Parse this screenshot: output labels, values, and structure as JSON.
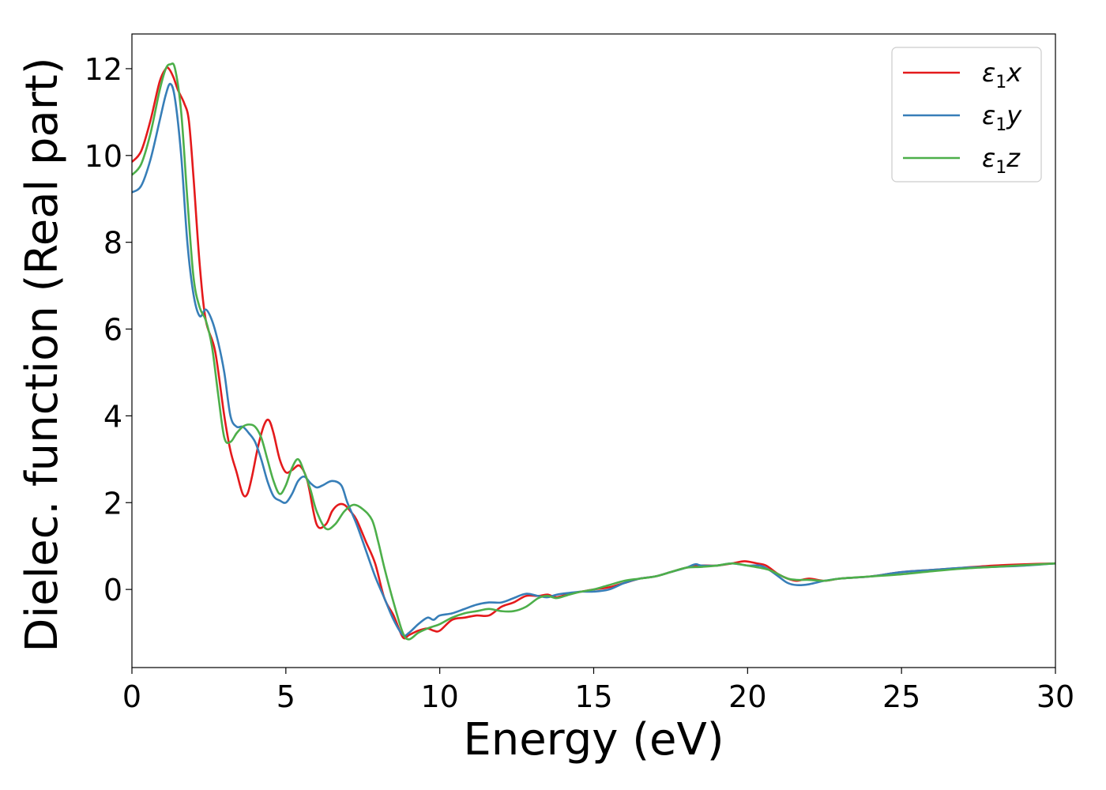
{
  "chart_data": {
    "type": "line",
    "xlabel": "Energy (eV)",
    "ylabel": "Dielec. function (Real part)",
    "xlim": [
      0,
      30
    ],
    "ylim": [
      -1.8,
      12.8
    ],
    "xticks": [
      0,
      5,
      10,
      15,
      20,
      25,
      30
    ],
    "yticks": [
      0,
      2,
      4,
      6,
      8,
      10,
      12
    ],
    "grid": false,
    "legend_position": "top-right",
    "series": [
      {
        "name": "ε₁x",
        "legend_base": "ε",
        "legend_sub": "1",
        "legend_var": "x",
        "color": "#e41a1c",
        "x": [
          0,
          0.3,
          0.6,
          0.9,
          1.1,
          1.2,
          1.35,
          1.5,
          1.7,
          1.85,
          2.0,
          2.2,
          2.4,
          2.7,
          3.0,
          3.2,
          3.4,
          3.6,
          3.75,
          3.9,
          4.1,
          4.3,
          4.45,
          4.6,
          4.8,
          5.0,
          5.2,
          5.45,
          5.7,
          6.0,
          6.3,
          6.5,
          6.7,
          6.9,
          7.1,
          7.3,
          7.6,
          7.9,
          8.2,
          8.5,
          8.8,
          9.0,
          9.3,
          9.6,
          9.8,
          10.0,
          10.4,
          10.8,
          11.2,
          11.6,
          12.0,
          12.4,
          12.8,
          13.2,
          13.5,
          13.8,
          14.2,
          14.6,
          15.0,
          15.5,
          16.0,
          16.5,
          17.0,
          17.5,
          18.0,
          18.5,
          19.0,
          19.5,
          19.9,
          20.3,
          20.6,
          21.0,
          21.3,
          21.6,
          22.0,
          22.5,
          23.0,
          24.0,
          25.0,
          26.0,
          27.0,
          28.0,
          29.0,
          30.0
        ],
        "y": [
          9.85,
          10.1,
          10.8,
          11.7,
          12.0,
          12.0,
          11.8,
          11.5,
          11.2,
          10.8,
          9.5,
          7.5,
          6.2,
          5.5,
          4.0,
          3.2,
          2.7,
          2.2,
          2.2,
          2.6,
          3.3,
          3.8,
          3.9,
          3.6,
          3.0,
          2.7,
          2.75,
          2.85,
          2.5,
          1.5,
          1.5,
          1.8,
          1.95,
          1.95,
          1.8,
          1.6,
          1.1,
          0.6,
          -0.2,
          -0.6,
          -1.1,
          -1.05,
          -0.95,
          -0.9,
          -0.95,
          -0.95,
          -0.7,
          -0.65,
          -0.6,
          -0.6,
          -0.4,
          -0.3,
          -0.15,
          -0.15,
          -0.12,
          -0.18,
          -0.1,
          -0.05,
          0.0,
          0.05,
          0.15,
          0.25,
          0.3,
          0.4,
          0.5,
          0.55,
          0.55,
          0.6,
          0.65,
          0.6,
          0.55,
          0.35,
          0.25,
          0.2,
          0.25,
          0.2,
          0.25,
          0.3,
          0.4,
          0.45,
          0.5,
          0.55,
          0.58,
          0.6
        ]
      },
      {
        "name": "ε₁y",
        "legend_base": "ε",
        "legend_sub": "1",
        "legend_var": "y",
        "color": "#377eb8",
        "x": [
          0,
          0.3,
          0.6,
          0.9,
          1.1,
          1.25,
          1.4,
          1.6,
          1.8,
          2.0,
          2.2,
          2.4,
          2.6,
          2.8,
          3.0,
          3.2,
          3.4,
          3.6,
          3.8,
          4.0,
          4.2,
          4.4,
          4.6,
          4.8,
          5.0,
          5.2,
          5.4,
          5.6,
          5.8,
          6.0,
          6.2,
          6.5,
          6.8,
          7.0,
          7.3,
          7.6,
          7.9,
          8.2,
          8.5,
          8.8,
          9.0,
          9.3,
          9.6,
          9.8,
          10.0,
          10.4,
          10.8,
          11.2,
          11.6,
          12.0,
          12.4,
          12.8,
          13.2,
          13.5,
          13.8,
          14.2,
          14.6,
          15.0,
          15.5,
          16.0,
          16.5,
          17.0,
          17.5,
          18.0,
          18.3,
          18.5,
          19.0,
          19.5,
          20.0,
          20.4,
          20.7,
          21.0,
          21.3,
          21.6,
          22.0,
          22.5,
          23.0,
          24.0,
          25.0,
          26.0,
          27.0,
          28.0,
          29.0,
          30.0
        ],
        "y": [
          9.15,
          9.3,
          9.9,
          10.8,
          11.4,
          11.65,
          11.3,
          10.0,
          8.0,
          6.8,
          6.3,
          6.45,
          6.2,
          5.7,
          5.0,
          4.0,
          3.75,
          3.75,
          3.6,
          3.4,
          3.0,
          2.5,
          2.15,
          2.05,
          2.0,
          2.2,
          2.5,
          2.6,
          2.45,
          2.35,
          2.4,
          2.5,
          2.4,
          2.0,
          1.5,
          0.9,
          0.3,
          -0.2,
          -0.7,
          -1.05,
          -1.0,
          -0.8,
          -0.65,
          -0.7,
          -0.6,
          -0.55,
          -0.45,
          -0.35,
          -0.3,
          -0.3,
          -0.2,
          -0.1,
          -0.15,
          -0.18,
          -0.12,
          -0.08,
          -0.05,
          -0.05,
          0.0,
          0.15,
          0.25,
          0.3,
          0.4,
          0.5,
          0.58,
          0.55,
          0.55,
          0.6,
          0.55,
          0.55,
          0.45,
          0.3,
          0.15,
          0.1,
          0.12,
          0.2,
          0.25,
          0.3,
          0.4,
          0.45,
          0.5,
          0.52,
          0.55,
          0.6
        ]
      },
      {
        "name": "ε₁z",
        "legend_base": "ε",
        "legend_sub": "1",
        "legend_var": "z",
        "color": "#4daf4a",
        "x": [
          0,
          0.3,
          0.6,
          0.9,
          1.1,
          1.25,
          1.4,
          1.6,
          1.8,
          2.0,
          2.2,
          2.4,
          2.6,
          2.8,
          3.0,
          3.2,
          3.4,
          3.6,
          3.8,
          4.0,
          4.2,
          4.4,
          4.6,
          4.8,
          5.0,
          5.2,
          5.4,
          5.6,
          5.8,
          6.0,
          6.3,
          6.6,
          6.9,
          7.2,
          7.5,
          7.8,
          8.0,
          8.2,
          8.5,
          8.8,
          9.0,
          9.3,
          9.6,
          9.8,
          10.0,
          10.4,
          10.8,
          11.2,
          11.6,
          12.0,
          12.4,
          12.8,
          13.2,
          13.5,
          13.8,
          14.2,
          14.6,
          15.0,
          15.5,
          16.0,
          16.5,
          17.0,
          17.5,
          18.0,
          18.5,
          19.0,
          19.5,
          20.0,
          20.4,
          20.7,
          21.0,
          21.3,
          21.6,
          22.0,
          22.5,
          23.0,
          24.0,
          25.0,
          26.0,
          27.0,
          28.0,
          29.0,
          30.0
        ],
        "y": [
          9.55,
          9.8,
          10.5,
          11.5,
          12.0,
          12.1,
          12.0,
          11.0,
          9.0,
          7.2,
          6.5,
          6.2,
          5.6,
          4.5,
          3.5,
          3.4,
          3.6,
          3.75,
          3.8,
          3.75,
          3.5,
          3.0,
          2.5,
          2.2,
          2.4,
          2.8,
          3.0,
          2.7,
          2.3,
          1.8,
          1.4,
          1.5,
          1.8,
          1.95,
          1.85,
          1.6,
          1.1,
          0.5,
          -0.3,
          -1.0,
          -1.15,
          -1.0,
          -0.9,
          -0.85,
          -0.8,
          -0.65,
          -0.55,
          -0.5,
          -0.45,
          -0.5,
          -0.5,
          -0.4,
          -0.2,
          -0.15,
          -0.2,
          -0.12,
          -0.05,
          0.0,
          0.1,
          0.2,
          0.25,
          0.3,
          0.4,
          0.5,
          0.52,
          0.55,
          0.6,
          0.55,
          0.5,
          0.45,
          0.35,
          0.25,
          0.22,
          0.22,
          0.2,
          0.25,
          0.3,
          0.35,
          0.42,
          0.48,
          0.52,
          0.56,
          0.6
        ]
      }
    ]
  }
}
